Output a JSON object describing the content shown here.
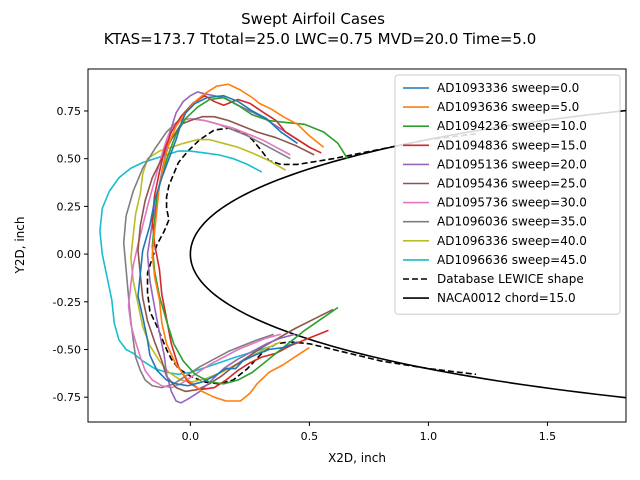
{
  "chart_data": {
    "type": "line",
    "title": "Swept Airfoil Cases",
    "subtitle": "KTAS=173.7 Ttotal=25.0 LWC=0.75 MVD=20.0 Time=5.0",
    "xlabel": "X2D, inch",
    "ylabel": "Y2D, inch",
    "xlim": [
      -0.43,
      1.83
    ],
    "ylim": [
      -0.88,
      0.97
    ],
    "xticks": [
      "0.0",
      "0.5",
      "1.0",
      "1.5"
    ],
    "xtick_values": [
      0.0,
      0.5,
      1.0,
      1.5
    ],
    "yticks": [
      "0.75",
      "0.50",
      "0.25",
      "0.00",
      "-0.25",
      "-0.50",
      "-0.75"
    ],
    "ytick_values": [
      0.75,
      0.5,
      0.25,
      0.0,
      -0.25,
      -0.5,
      -0.75
    ],
    "grid": false,
    "legend_position": "upper-right",
    "series": [
      {
        "name": "AD1093336 sweep=0.0",
        "color": "#1f77b4",
        "dash": "solid",
        "x": [
          0.45,
          0.38,
          0.32,
          0.26,
          0.2,
          0.14,
          0.07,
          0.02,
          -0.02,
          -0.04,
          -0.06,
          -0.09,
          -0.12,
          -0.15,
          -0.17,
          -0.2,
          -0.21,
          -0.22,
          -0.2,
          -0.18,
          -0.17,
          -0.14,
          -0.1,
          -0.06,
          -0.01,
          0.05,
          0.1,
          0.15,
          0.19,
          0.22,
          0.27,
          0.33,
          0.39,
          0.45
        ],
        "y": [
          0.58,
          0.64,
          0.71,
          0.75,
          0.8,
          0.83,
          0.82,
          0.79,
          0.74,
          0.68,
          0.6,
          0.5,
          0.4,
          0.28,
          0.15,
          0.02,
          -0.1,
          -0.22,
          -0.33,
          -0.45,
          -0.53,
          -0.61,
          -0.66,
          -0.68,
          -0.69,
          -0.67,
          -0.64,
          -0.6,
          -0.6,
          -0.56,
          -0.53,
          -0.5,
          -0.49,
          -0.46
        ]
      },
      {
        "name": "AD1093636 sweep=5.0",
        "color": "#ff7f0e",
        "dash": "solid",
        "x": [
          0.56,
          0.5,
          0.45,
          0.39,
          0.34,
          0.29,
          0.26,
          0.21,
          0.16,
          0.11,
          0.06,
          0.02,
          -0.02,
          -0.06,
          -0.09,
          -0.11,
          -0.13,
          -0.14,
          -0.15,
          -0.16,
          -0.15,
          -0.13,
          -0.12,
          -0.1,
          -0.06,
          -0.01,
          0.05,
          0.1,
          0.15,
          0.21,
          0.25,
          0.28,
          0.33,
          0.39,
          0.45,
          0.5
        ],
        "y": [
          0.56,
          0.62,
          0.68,
          0.72,
          0.76,
          0.79,
          0.82,
          0.86,
          0.89,
          0.88,
          0.84,
          0.8,
          0.74,
          0.67,
          0.58,
          0.48,
          0.36,
          0.24,
          0.12,
          0.0,
          -0.12,
          -0.24,
          -0.36,
          -0.47,
          -0.58,
          -0.66,
          -0.72,
          -0.75,
          -0.77,
          -0.77,
          -0.73,
          -0.68,
          -0.62,
          -0.58,
          -0.53,
          -0.49
        ]
      },
      {
        "name": "AD1094236 sweep=10.0",
        "color": "#2ca02c",
        "dash": "solid",
        "x": [
          0.66,
          0.62,
          0.56,
          0.48,
          0.4,
          0.33,
          0.26,
          0.2,
          0.14,
          0.08,
          0.03,
          -0.02,
          -0.06,
          -0.09,
          -0.12,
          -0.14,
          -0.15,
          -0.16,
          -0.15,
          -0.13,
          -0.1,
          -0.07,
          -0.03,
          0.02,
          0.08,
          0.14,
          0.2,
          0.26,
          0.31,
          0.36,
          0.42,
          0.48,
          0.55,
          0.62
        ],
        "y": [
          0.5,
          0.58,
          0.64,
          0.68,
          0.69,
          0.7,
          0.73,
          0.78,
          0.82,
          0.81,
          0.77,
          0.71,
          0.63,
          0.53,
          0.42,
          0.3,
          0.17,
          0.04,
          -0.09,
          -0.22,
          -0.35,
          -0.47,
          -0.56,
          -0.63,
          -0.67,
          -0.68,
          -0.66,
          -0.62,
          -0.57,
          -0.52,
          -0.46,
          -0.4,
          -0.34,
          -0.28
        ]
      },
      {
        "name": "AD1094836 sweep=15.0",
        "color": "#d62728",
        "dash": "solid",
        "x": [
          0.55,
          0.5,
          0.45,
          0.4,
          0.36,
          0.31,
          0.25,
          0.2,
          0.14,
          0.1,
          0.06,
          0.01,
          -0.04,
          -0.08,
          -0.11,
          -0.13,
          -0.15,
          -0.16,
          -0.15,
          -0.13,
          -0.12,
          -0.1,
          -0.08,
          -0.05,
          -0.01,
          0.04,
          0.1,
          0.15,
          0.2,
          0.25,
          0.3,
          0.36,
          0.42,
          0.5,
          0.58
        ],
        "y": [
          0.53,
          0.56,
          0.6,
          0.64,
          0.7,
          0.74,
          0.79,
          0.81,
          0.78,
          0.8,
          0.83,
          0.79,
          0.72,
          0.64,
          0.54,
          0.43,
          0.31,
          0.18,
          0.05,
          -0.08,
          -0.21,
          -0.34,
          -0.47,
          -0.59,
          -0.67,
          -0.71,
          -0.7,
          -0.66,
          -0.61,
          -0.57,
          -0.54,
          -0.52,
          -0.48,
          -0.44,
          -0.4
        ]
      },
      {
        "name": "AD1095136 sweep=20.0",
        "color": "#9467bd",
        "dash": "solid",
        "x": [
          0.5,
          0.45,
          0.4,
          0.35,
          0.3,
          0.25,
          0.2,
          0.14,
          0.1,
          0.06,
          0.03,
          0.0,
          -0.03,
          -0.06,
          -0.08,
          -0.1,
          -0.12,
          -0.14,
          -0.16,
          -0.18,
          -0.17,
          -0.15,
          -0.13,
          -0.11,
          -0.1,
          -0.08,
          -0.06,
          -0.04,
          -0.01,
          0.04,
          0.09,
          0.14,
          0.2,
          0.26,
          0.32,
          0.38,
          0.44
        ],
        "y": [
          0.56,
          0.6,
          0.64,
          0.68,
          0.72,
          0.75,
          0.78,
          0.82,
          0.83,
          0.84,
          0.85,
          0.83,
          0.8,
          0.74,
          0.66,
          0.55,
          0.43,
          0.3,
          0.16,
          0.0,
          -0.14,
          -0.28,
          -0.41,
          -0.53,
          -0.63,
          -0.72,
          -0.77,
          -0.78,
          -0.76,
          -0.72,
          -0.66,
          -0.6,
          -0.55,
          -0.51,
          -0.47,
          -0.44,
          -0.42
        ]
      },
      {
        "name": "AD1095436 sweep=25.0",
        "color": "#8c564b",
        "dash": "solid",
        "x": [
          0.52,
          0.44,
          0.36,
          0.28,
          0.22,
          0.16,
          0.1,
          0.05,
          0.0,
          -0.04,
          -0.08,
          -0.12,
          -0.16,
          -0.19,
          -0.21,
          -0.22,
          -0.21,
          -0.2,
          -0.18,
          -0.15,
          -0.12,
          -0.1,
          -0.06,
          -0.02,
          0.03,
          0.08,
          0.13,
          0.18,
          0.24,
          0.3,
          0.37,
          0.44,
          0.52,
          0.6
        ],
        "y": [
          0.52,
          0.57,
          0.61,
          0.64,
          0.67,
          0.7,
          0.72,
          0.72,
          0.7,
          0.68,
          0.6,
          0.5,
          0.4,
          0.28,
          0.15,
          0.02,
          -0.11,
          -0.23,
          -0.35,
          -0.46,
          -0.56,
          -0.64,
          -0.7,
          -0.72,
          -0.71,
          -0.68,
          -0.64,
          -0.59,
          -0.54,
          -0.49,
          -0.44,
          -0.39,
          -0.34,
          -0.29
        ]
      },
      {
        "name": "AD1095736 sweep=30.0",
        "color": "#e377c2",
        "dash": "solid",
        "x": [
          0.42,
          0.36,
          0.3,
          0.24,
          0.18,
          0.12,
          0.06,
          0.0,
          -0.04,
          -0.08,
          -0.1,
          -0.12,
          -0.14,
          -0.16,
          -0.18,
          -0.2,
          -0.22,
          -0.24,
          -0.25,
          -0.26,
          -0.25,
          -0.23,
          -0.21,
          -0.19,
          -0.16,
          -0.12,
          -0.08,
          -0.04,
          0.02,
          0.08,
          0.14,
          0.2,
          0.26,
          0.32,
          0.38
        ],
        "y": [
          0.52,
          0.56,
          0.6,
          0.63,
          0.66,
          0.68,
          0.7,
          0.71,
          0.7,
          0.66,
          0.6,
          0.52,
          0.43,
          0.34,
          0.25,
          0.15,
          0.05,
          -0.06,
          -0.16,
          -0.27,
          -0.37,
          -0.46,
          -0.54,
          -0.61,
          -0.66,
          -0.69,
          -0.7,
          -0.68,
          -0.63,
          -0.58,
          -0.54,
          -0.5,
          -0.47,
          -0.44,
          -0.42
        ]
      },
      {
        "name": "AD1096036 sweep=35.0",
        "color": "#7f7f7f",
        "dash": "solid",
        "x": [
          0.42,
          0.36,
          0.3,
          0.24,
          0.18,
          0.12,
          0.06,
          0.0,
          -0.05,
          -0.1,
          -0.15,
          -0.2,
          -0.24,
          -0.27,
          -0.28,
          -0.27,
          -0.26,
          -0.25,
          -0.24,
          -0.23,
          -0.21,
          -0.19,
          -0.16,
          -0.12,
          -0.07,
          -0.02,
          0.04,
          0.1,
          0.16,
          0.22,
          0.28,
          0.35
        ],
        "y": [
          0.5,
          0.54,
          0.58,
          0.62,
          0.65,
          0.68,
          0.7,
          0.71,
          0.7,
          0.64,
          0.55,
          0.45,
          0.33,
          0.2,
          0.06,
          -0.08,
          -0.22,
          -0.35,
          -0.45,
          -0.54,
          -0.61,
          -0.66,
          -0.69,
          -0.7,
          -0.68,
          -0.64,
          -0.59,
          -0.55,
          -0.51,
          -0.48,
          -0.45,
          -0.42
        ]
      },
      {
        "name": "AD1096336 sweep=40.0",
        "color": "#bcbd22",
        "dash": "solid",
        "x": [
          0.4,
          0.33,
          0.26,
          0.2,
          0.14,
          0.08,
          0.03,
          -0.03,
          -0.08,
          -0.13,
          -0.18,
          -0.2,
          -0.21,
          -0.23,
          -0.24,
          -0.25,
          -0.24,
          -0.22,
          -0.2,
          -0.17,
          -0.13,
          -0.09,
          -0.04,
          0.01,
          0.07,
          0.13,
          0.19,
          0.25,
          0.31,
          0.38
        ],
        "y": [
          0.44,
          0.49,
          0.53,
          0.56,
          0.58,
          0.6,
          0.6,
          0.58,
          0.56,
          0.54,
          0.5,
          0.42,
          0.32,
          0.21,
          0.1,
          -0.02,
          -0.14,
          -0.26,
          -0.38,
          -0.48,
          -0.56,
          -0.62,
          -0.66,
          -0.67,
          -0.65,
          -0.62,
          -0.58,
          -0.54,
          -0.5,
          -0.46
        ]
      },
      {
        "name": "AD1096636 sweep=45.0",
        "color": "#17becf",
        "dash": "solid",
        "x": [
          0.3,
          0.24,
          0.18,
          0.12,
          0.06,
          0.0,
          -0.05,
          -0.1,
          -0.15,
          -0.2,
          -0.25,
          -0.3,
          -0.34,
          -0.37,
          -0.38,
          -0.37,
          -0.35,
          -0.33,
          -0.32,
          -0.3,
          -0.27,
          -0.24,
          -0.2,
          -0.15,
          -0.1,
          -0.05,
          0.0,
          0.05,
          0.12,
          0.19,
          0.27,
          0.35
        ],
        "y": [
          0.43,
          0.47,
          0.5,
          0.52,
          0.53,
          0.54,
          0.54,
          0.52,
          0.5,
          0.48,
          0.45,
          0.4,
          0.33,
          0.24,
          0.12,
          0.0,
          -0.12,
          -0.24,
          -0.36,
          -0.45,
          -0.5,
          -0.52,
          -0.56,
          -0.6,
          -0.62,
          -0.63,
          -0.62,
          -0.6,
          -0.57,
          -0.54,
          -0.51,
          -0.48
        ]
      },
      {
        "name": "Database LEWICE shape",
        "color": "#000000",
        "dash": "dashed",
        "x": [
          1.2,
          1.0,
          0.8,
          0.6,
          0.45,
          0.38,
          0.33,
          0.3,
          0.26,
          0.22,
          0.16,
          0.1,
          0.04,
          -0.01,
          -0.05,
          -0.07,
          -0.09,
          -0.1,
          -0.1,
          -0.09,
          -0.11,
          -0.14,
          -0.16,
          -0.18,
          -0.18,
          -0.17,
          -0.14,
          -0.12,
          -0.1,
          -0.08,
          -0.05,
          0.0,
          0.06,
          0.12,
          0.18,
          0.24,
          0.3,
          0.36,
          0.42,
          0.5,
          0.6,
          0.8,
          1.0,
          1.2
        ],
        "y": [
          0.63,
          0.6,
          0.55,
          0.5,
          0.47,
          0.47,
          0.49,
          0.54,
          0.6,
          0.64,
          0.66,
          0.65,
          0.6,
          0.54,
          0.48,
          0.42,
          0.36,
          0.3,
          0.24,
          0.18,
          0.12,
          0.05,
          -0.02,
          -0.1,
          -0.2,
          -0.3,
          -0.38,
          -0.44,
          -0.5,
          -0.55,
          -0.6,
          -0.64,
          -0.67,
          -0.68,
          -0.66,
          -0.6,
          -0.52,
          -0.47,
          -0.46,
          -0.47,
          -0.5,
          -0.56,
          -0.6,
          -0.63
        ]
      },
      {
        "name": "NACA0012 chord=15.0",
        "color": "#000000",
        "dash": "solid",
        "fn": "naca0012",
        "chord": 15.0
      }
    ]
  }
}
